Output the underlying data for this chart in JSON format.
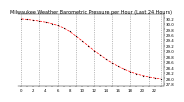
{
  "title": "Milwaukee Weather Barometric Pressure per Hour (Last 24 Hours)",
  "hours": [
    0,
    1,
    2,
    3,
    4,
    5,
    6,
    7,
    8,
    9,
    10,
    11,
    12,
    13,
    14,
    15,
    16,
    17,
    18,
    19,
    20,
    21,
    22,
    23
  ],
  "pressure": [
    30.18,
    30.16,
    30.13,
    30.1,
    30.06,
    30.01,
    29.94,
    29.85,
    29.72,
    29.55,
    29.38,
    29.2,
    29.02,
    28.86,
    28.7,
    28.56,
    28.44,
    28.33,
    28.24,
    28.16,
    28.1,
    28.05,
    28.01,
    27.98
  ],
  "line_color": "#ff0000",
  "marker_color": "#000000",
  "grid_color": "#888888",
  "bg_color": "#ffffff",
  "ylim": [
    27.7,
    30.35
  ],
  "ytick_values": [
    27.8,
    28.0,
    28.2,
    28.4,
    28.6,
    28.8,
    29.0,
    29.2,
    29.4,
    29.6,
    29.8,
    30.0,
    30.2
  ],
  "title_fontsize": 3.5,
  "tick_fontsize": 2.8,
  "line_width": 0.5,
  "marker_size": 1.2,
  "grid_linewidth": 0.4,
  "vgrid_positions": [
    0,
    3,
    6,
    9,
    12,
    15,
    18,
    21,
    23
  ]
}
